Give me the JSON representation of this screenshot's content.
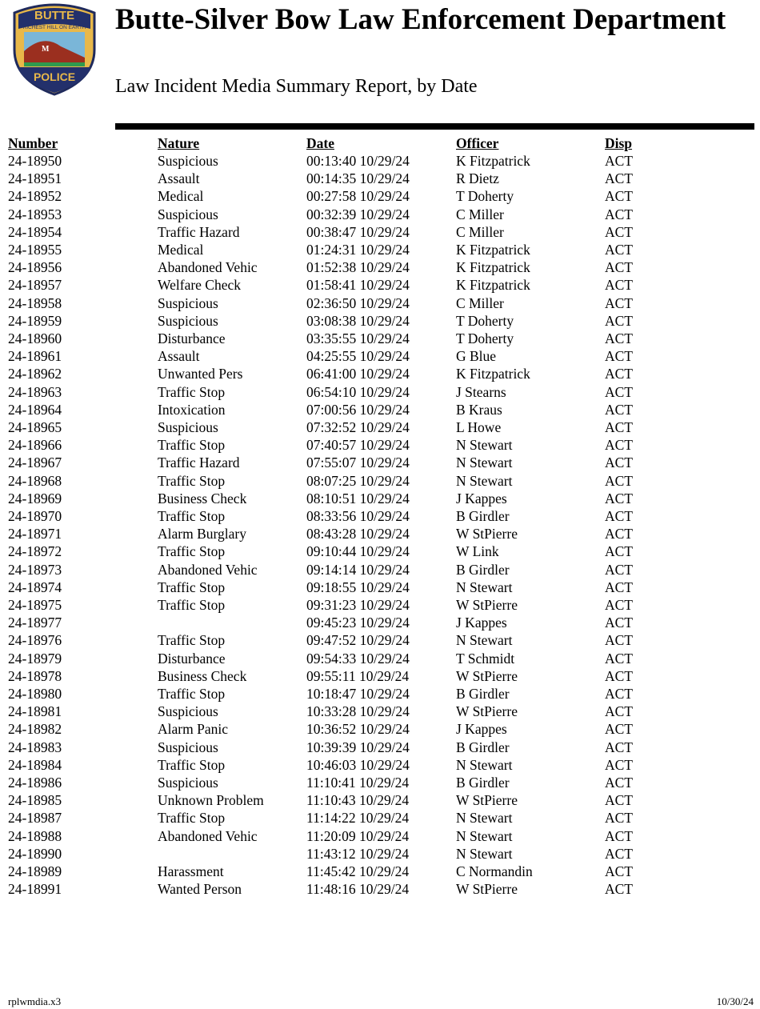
{
  "header": {
    "title": "Butte-Silver Bow Law Enforcement Department",
    "subtitle": "Law Incident Media Summary Report, by Date",
    "logo_text": [
      "BUTTE",
      "RICHEST HILL ON EARTH",
      "POLICE",
      "M"
    ]
  },
  "table": {
    "columns": [
      "Number",
      "Nature",
      "Date",
      "Officer",
      "Disp"
    ],
    "rows": [
      [
        "24-18950",
        "Suspicious",
        "00:13:40 10/29/24",
        "K Fitzpatrick",
        "ACT"
      ],
      [
        "24-18951",
        "Assault",
        "00:14:35 10/29/24",
        "R Dietz",
        "ACT"
      ],
      [
        "24-18952",
        "Medical",
        "00:27:58 10/29/24",
        "T Doherty",
        "ACT"
      ],
      [
        "24-18953",
        "Suspicious",
        "00:32:39 10/29/24",
        "C Miller",
        "ACT"
      ],
      [
        "24-18954",
        "Traffic Hazard",
        "00:38:47 10/29/24",
        "C Miller",
        "ACT"
      ],
      [
        "24-18955",
        "Medical",
        "01:24:31 10/29/24",
        "K Fitzpatrick",
        "ACT"
      ],
      [
        "24-18956",
        "Abandoned Vehic",
        "01:52:38 10/29/24",
        "K Fitzpatrick",
        "ACT"
      ],
      [
        "24-18957",
        "Welfare Check",
        "01:58:41 10/29/24",
        "K Fitzpatrick",
        "ACT"
      ],
      [
        "24-18958",
        "Suspicious",
        "02:36:50 10/29/24",
        "C Miller",
        "ACT"
      ],
      [
        "24-18959",
        "Suspicious",
        "03:08:38 10/29/24",
        "T Doherty",
        "ACT"
      ],
      [
        "24-18960",
        "Disturbance",
        "03:35:55 10/29/24",
        "T Doherty",
        "ACT"
      ],
      [
        "24-18961",
        "Assault",
        "04:25:55 10/29/24",
        "G Blue",
        "ACT"
      ],
      [
        "24-18962",
        "Unwanted Pers",
        "06:41:00 10/29/24",
        "K Fitzpatrick",
        "ACT"
      ],
      [
        "24-18963",
        "Traffic Stop",
        "06:54:10 10/29/24",
        "J Stearns",
        "ACT"
      ],
      [
        "24-18964",
        "Intoxication",
        "07:00:56 10/29/24",
        "B Kraus",
        "ACT"
      ],
      [
        "24-18965",
        "Suspicious",
        "07:32:52 10/29/24",
        "L Howe",
        "ACT"
      ],
      [
        "24-18966",
        "Traffic Stop",
        "07:40:57 10/29/24",
        "N Stewart",
        "ACT"
      ],
      [
        "24-18967",
        "Traffic Hazard",
        "07:55:07 10/29/24",
        "N Stewart",
        "ACT"
      ],
      [
        "24-18968",
        "Traffic Stop",
        "08:07:25 10/29/24",
        "N Stewart",
        "ACT"
      ],
      [
        "24-18969",
        "Business Check",
        "08:10:51 10/29/24",
        "J Kappes",
        "ACT"
      ],
      [
        "24-18970",
        "Traffic Stop",
        "08:33:56 10/29/24",
        "B Girdler",
        "ACT"
      ],
      [
        "24-18971",
        "Alarm Burglary",
        "08:43:28 10/29/24",
        "W StPierre",
        "ACT"
      ],
      [
        "24-18972",
        "Traffic Stop",
        "09:10:44 10/29/24",
        "W Link",
        "ACT"
      ],
      [
        "24-18973",
        "Abandoned Vehic",
        "09:14:14 10/29/24",
        "B Girdler",
        "ACT"
      ],
      [
        "24-18974",
        "Traffic Stop",
        "09:18:55 10/29/24",
        "N Stewart",
        "ACT"
      ],
      [
        "24-18975",
        "Traffic Stop",
        "09:31:23 10/29/24",
        "W StPierre",
        "ACT"
      ],
      [
        "24-18977",
        "",
        "09:45:23 10/29/24",
        "J Kappes",
        "ACT"
      ],
      [
        "24-18976",
        "Traffic Stop",
        "09:47:52 10/29/24",
        "N Stewart",
        "ACT"
      ],
      [
        "24-18979",
        "Disturbance",
        "09:54:33 10/29/24",
        "T Schmidt",
        "ACT"
      ],
      [
        "24-18978",
        "Business Check",
        "09:55:11 10/29/24",
        "W StPierre",
        "ACT"
      ],
      [
        "24-18980",
        "Traffic Stop",
        "10:18:47 10/29/24",
        "B Girdler",
        "ACT"
      ],
      [
        "24-18981",
        "Suspicious",
        "10:33:28 10/29/24",
        "W StPierre",
        "ACT"
      ],
      [
        "24-18982",
        "Alarm Panic",
        "10:36:52 10/29/24",
        "J Kappes",
        "ACT"
      ],
      [
        "24-18983",
        "Suspicious",
        "10:39:39 10/29/24",
        "B Girdler",
        "ACT"
      ],
      [
        "24-18984",
        "Traffic Stop",
        "10:46:03 10/29/24",
        "N Stewart",
        "ACT"
      ],
      [
        "24-18986",
        "Suspicious",
        "11:10:41 10/29/24",
        "B Girdler",
        "ACT"
      ],
      [
        "24-18985",
        "Unknown Problem",
        "11:10:43 10/29/24",
        "W StPierre",
        "ACT"
      ],
      [
        "24-18987",
        "Traffic Stop",
        "11:14:22 10/29/24",
        "N Stewart",
        "ACT"
      ],
      [
        "24-18988",
        "Abandoned Vehic",
        "11:20:09 10/29/24",
        "N Stewart",
        "ACT"
      ],
      [
        "24-18990",
        "",
        "11:43:12 10/29/24",
        "N Stewart",
        "ACT"
      ],
      [
        "24-18989",
        "Harassment",
        "11:45:42 10/29/24",
        "C Normandin",
        "ACT"
      ],
      [
        "24-18991",
        "Wanted Person",
        "11:48:16 10/29/24",
        "W StPierre",
        "ACT"
      ]
    ]
  },
  "footer": {
    "report_id": "rplwmdia.x3",
    "date": "10/30/24"
  }
}
